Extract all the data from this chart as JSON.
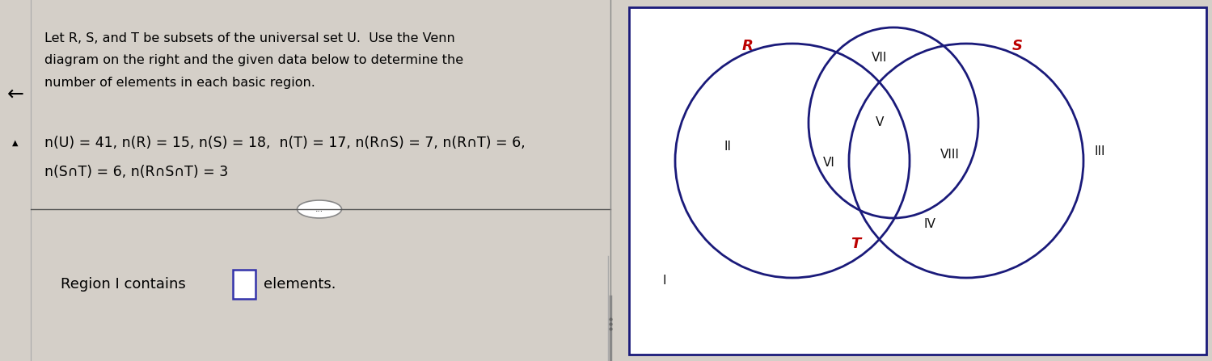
{
  "page_bg": "#d4cfc8",
  "title_line1": "Let R, S, and T be subsets of the universal set U.  Use the Venn",
  "title_line2": "diagram on the right and the given data below to determine the",
  "title_line3": "number of elements in each basic region.",
  "data_line1": "n(U) = 41, n(R) = 15, n(S) = 18,  n(T) = 17, n(R∩S) = 7, n(R∩T) = 6,",
  "data_line2": "n(S∩T) = 6, n(R∩S∩T) = 3",
  "bottom_text1": "Region I contains",
  "bottom_text2": "elements.",
  "arrow_label": "←",
  "triangle_label": "▲",
  "venn_box_color": "#1a1a7a",
  "circle_color": "#1a1a7a",
  "label_R_color": "#bb0000",
  "label_S_color": "#bb0000",
  "label_T_color": "#bb0000",
  "region_label_color": "#111111",
  "input_box_color": "#3333aa",
  "divider_color": "#555555",
  "font_size_title": 11.5,
  "font_size_data": 12.5,
  "font_size_bottom": 13,
  "font_size_region": 11,
  "font_size_label": 13
}
